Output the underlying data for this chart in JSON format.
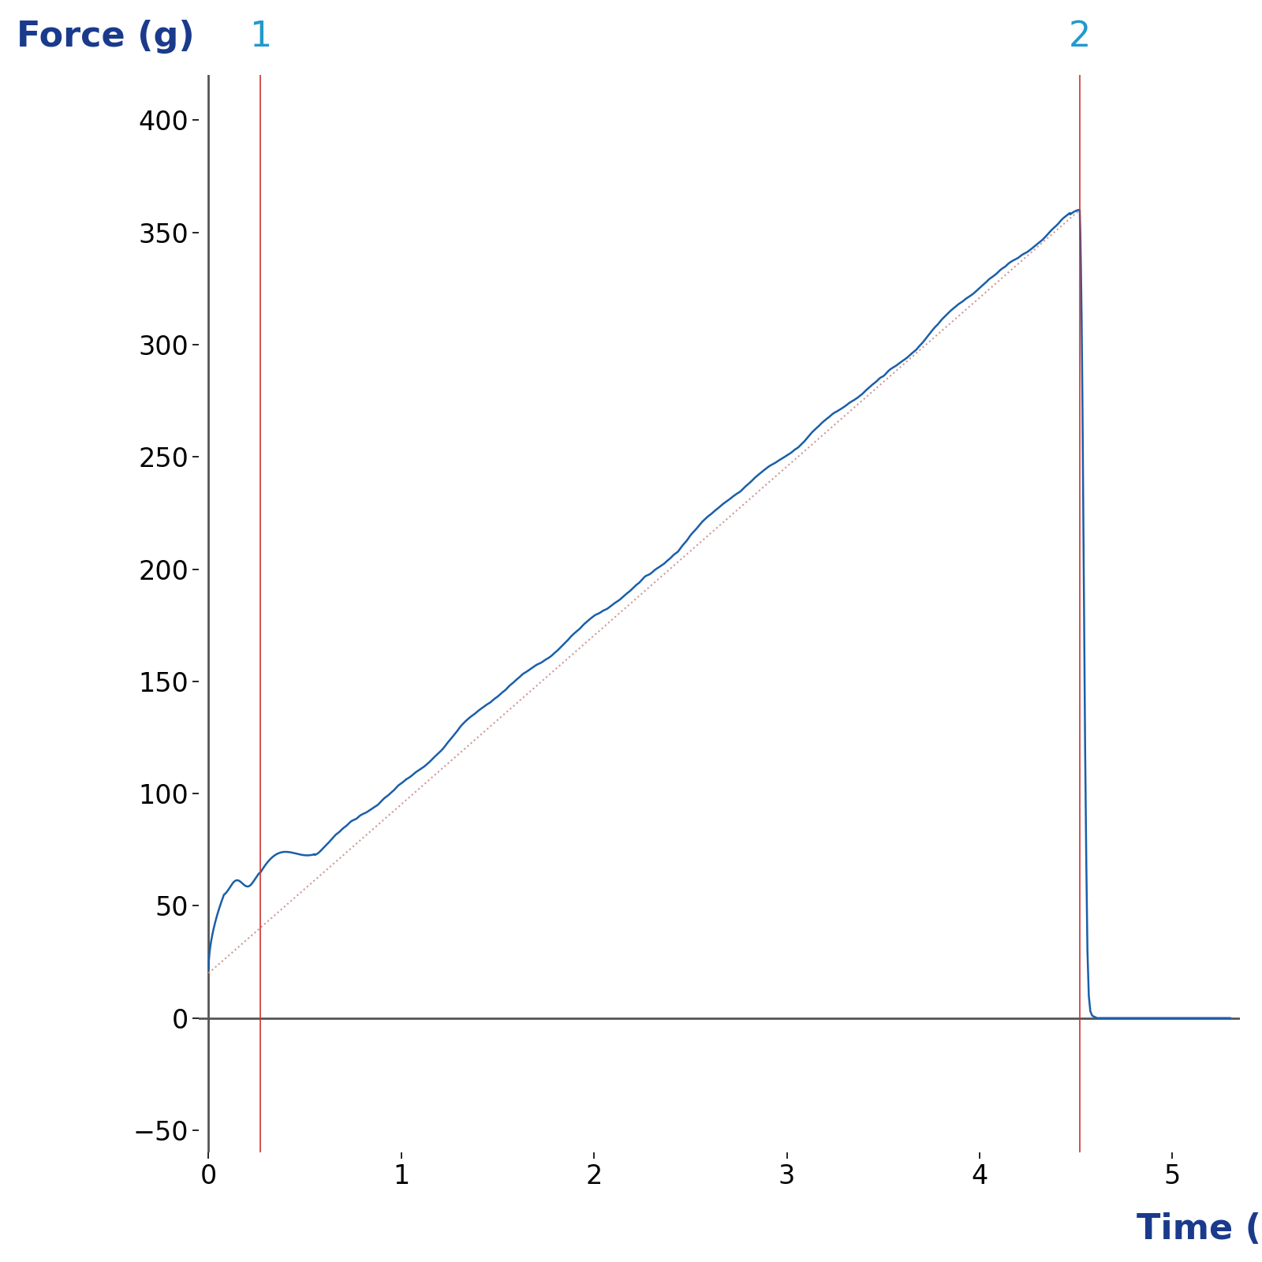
{
  "ylabel": "Force (g)",
  "xlabel": "Time (sec)",
  "xlim": [
    -0.05,
    5.35
  ],
  "ylim": [
    -60,
    420
  ],
  "yticks": [
    -50,
    0,
    50,
    100,
    150,
    200,
    250,
    300,
    350,
    400
  ],
  "xticks": [
    0,
    1,
    2,
    3,
    4,
    5
  ],
  "vline1_x": 0.27,
  "vline2_x": 4.52,
  "vline1_label": "1",
  "vline2_label": "2",
  "vline_color": "#cc3333",
  "line_color": "#1a5fa8",
  "dotted_color": "#cc9999",
  "label_color": "#2299cc",
  "axis_label_color": "#1a3a8c",
  "background_color": "#ffffff",
  "figsize": [
    16,
    16
  ],
  "dpi": 100,
  "dot_line_x0": 0.0,
  "dot_line_y0": 20,
  "dot_line_x1": 4.52,
  "dot_line_y1": 360
}
